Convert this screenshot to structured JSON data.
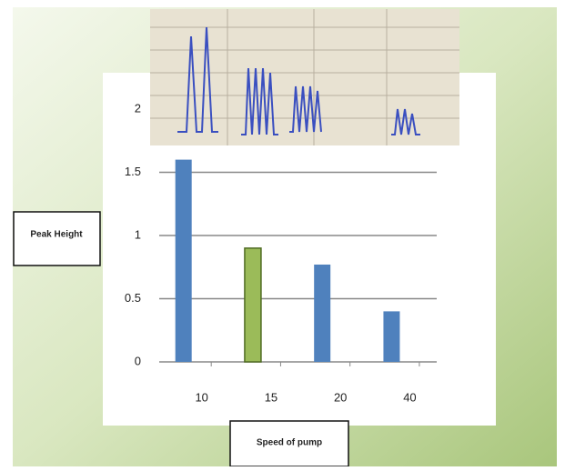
{
  "chart_data": {
    "type": "bar",
    "x_label": "Speed of pump",
    "y_label": "Peak Height",
    "categories": [
      "10",
      "15",
      "20",
      "40"
    ],
    "values": [
      1.6,
      0.9,
      0.77,
      0.4
    ],
    "colors": [
      "#4f81bd",
      "#9bbb59",
      "#4f81bd",
      "#4f81bd"
    ],
    "ylim": [
      0,
      2
    ],
    "yticks": [
      0,
      0.5,
      1,
      1.5,
      2
    ],
    "grid": true
  }
}
